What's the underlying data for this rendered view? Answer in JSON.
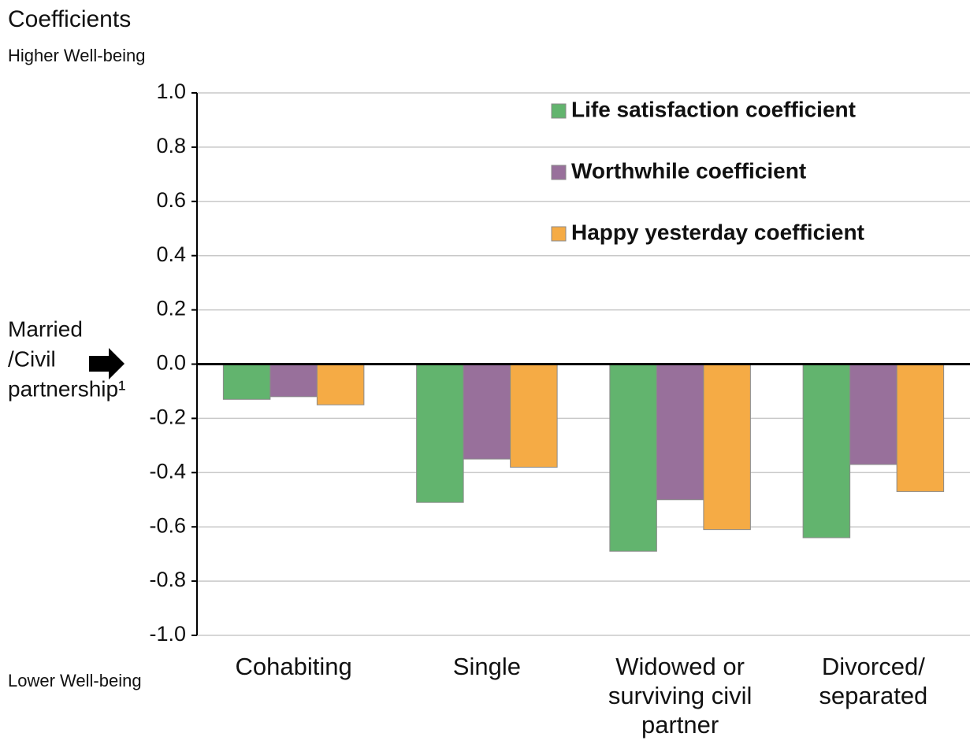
{
  "chart_data": {
    "type": "bar",
    "title": "Coefficients",
    "top_label": "Higher Well-being",
    "bottom_label": "Lower Well-being",
    "annotation": [
      "Married",
      "/Civil",
      "partnership¹"
    ],
    "categories": [
      "Cohabiting",
      "Single",
      "Widowed or surviving civil partner",
      "Divorced/ separated"
    ],
    "series": [
      {
        "name": "Life satisfaction coefficient",
        "color": "#62b46e",
        "values": [
          -0.13,
          -0.51,
          -0.69,
          -0.64
        ]
      },
      {
        "name": "Worthwhile coefficient",
        "color": "#98709b",
        "values": [
          -0.12,
          -0.35,
          -0.5,
          -0.37
        ]
      },
      {
        "name": "Happy yesterday coefficient",
        "color": "#f5ab45",
        "values": [
          -0.15,
          -0.38,
          -0.61,
          -0.47
        ]
      }
    ],
    "ylim": [
      -1.0,
      1.0
    ],
    "yticks": [
      {
        "value": 1.0,
        "label": "1.0"
      },
      {
        "value": 0.8,
        "label": "0.8"
      },
      {
        "value": 0.6,
        "label": "0.6"
      },
      {
        "value": 0.4,
        "label": "0.4"
      },
      {
        "value": 0.2,
        "label": "0.2"
      },
      {
        "value": 0.0,
        "label": "0.0"
      },
      {
        "value": -0.2,
        "label": "-0.2"
      },
      {
        "value": -0.4,
        "label": "-0.4"
      },
      {
        "value": -0.6,
        "label": "-0.6"
      },
      {
        "value": -0.8,
        "label": "-0.8"
      },
      {
        "value": -1.0,
        "label": "-1.0"
      }
    ],
    "grid": true,
    "legend": "top-right"
  }
}
